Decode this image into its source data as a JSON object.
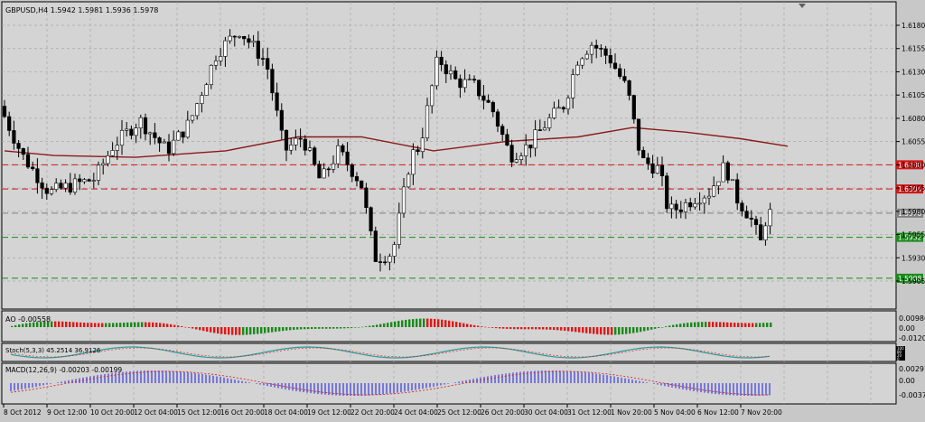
{
  "chart": {
    "symbol_header": "GBPUSD,H4  1.5942 1.5981 1.5936 1.5978",
    "price_ticks": [
      "1.6180",
      "1.6155",
      "1.6130",
      "1.6105",
      "1.6080",
      "1.6055",
      "1.6030",
      "1.6005",
      "1.5980",
      "1.5955",
      "1.5930",
      "1.5905"
    ],
    "hlines": [
      {
        "value": 1.603,
        "label": "1.6030",
        "color": "#d11818"
      },
      {
        "value": 1.6004,
        "label": "1.6004",
        "color": "#d11818"
      },
      {
        "value": 1.5978,
        "label": "1.5978",
        "color": "#808080"
      },
      {
        "value": 1.5952,
        "label": "1.5952",
        "color": "#1a8a1a"
      },
      {
        "value": 1.5908,
        "label": "1.5908",
        "color": "#1a8a1a"
      }
    ],
    "time_labels": [
      "8 Oct 2012",
      "9 Oct 12:00",
      "10 Oct 20:00",
      "12 Oct 04:00",
      "15 Oct 12:00",
      "16 Oct 20:00",
      "18 Oct 04:00",
      "19 Oct 12:00",
      "22 Oct 20:00",
      "24 Oct 04:00",
      "25 Oct 12:00",
      "26 Oct 20:00",
      "30 Oct 04:00",
      "31 Oct 12:00",
      "1 Nov 20:00",
      "5 Nov 04:00",
      "6 Nov 12:00",
      "7 Nov 20:00"
    ],
    "colors": {
      "bull": "#ffffff",
      "bear": "#000000",
      "ma": "#8b1a1a",
      "grid": "#a8a8a8",
      "background": "#d4d4d4",
      "ao_up": "#1a8a1a",
      "ao_down": "#e01818",
      "stoch_main": "#2a9a9a",
      "macd_hist": "#3a3ae0",
      "macd_signal": "#e01818"
    }
  },
  "ao": {
    "label": "AO -0.00558",
    "ticks": [
      "0.00986",
      "0.00",
      "-0.01203"
    ]
  },
  "stoch": {
    "label": "Stoch(5,3,3) 45.2514 36.9126",
    "ticks": [
      "100",
      "80",
      "20",
      "0"
    ]
  },
  "macd": {
    "label": "MACD(12,26,9) -0.00203 -0.00199",
    "ticks": [
      "0.00297",
      "0.00",
      "-0.00374"
    ]
  }
}
